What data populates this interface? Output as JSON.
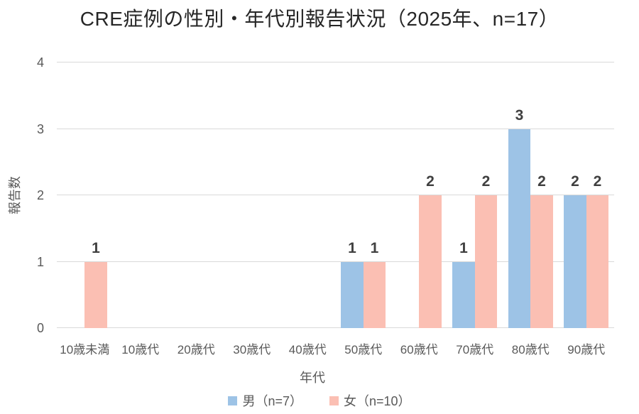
{
  "chart_data": {
    "type": "bar",
    "title": "CRE症例の性別・年代別報告状況（2025年、n=17）",
    "xlabel": "年代",
    "ylabel": "報告数",
    "categories": [
      "10歳未満",
      "10歳代",
      "20歳代",
      "30歳代",
      "40歳代",
      "50歳代",
      "60歳代",
      "70歳代",
      "80歳代",
      "90歳代"
    ],
    "series": [
      {
        "name": "男（n=7）",
        "color": "#9DC3E6",
        "values": [
          0,
          0,
          0,
          0,
          0,
          1,
          0,
          1,
          3,
          2
        ]
      },
      {
        "name": "女（n=10）",
        "color": "#FBBFB3",
        "values": [
          1,
          0,
          0,
          0,
          0,
          1,
          2,
          2,
          2,
          2
        ]
      }
    ],
    "ylim": [
      0,
      4
    ],
    "yticks": [
      0,
      1,
      2,
      3,
      4
    ],
    "grid": true,
    "show_data_labels": true,
    "legend_position": "bottom",
    "styles": {
      "grid_color": "#D9D9D9",
      "axis_text_color": "#595959",
      "data_label_color": "#404040",
      "title_color": "#262626",
      "background": "#FFFFFF"
    }
  }
}
